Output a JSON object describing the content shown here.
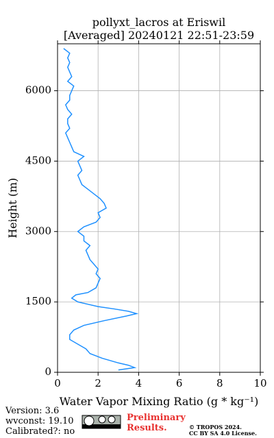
{
  "chart_data": {
    "type": "line",
    "title": "pollyxt_lacros at Eriswil",
    "subtitle": "[Averaged] 20240121 22:51-23:59",
    "x_label": "Water Vapor Mixing Ratio (g * kg⁻¹)",
    "y_label": "Height (m)",
    "color": "#1e90ff",
    "grid": true,
    "xlim": [
      0,
      10
    ],
    "xticks": [
      0,
      2,
      4,
      6,
      8,
      10
    ],
    "ylim": [
      0,
      7000
    ],
    "yticks": [
      0,
      1500,
      3000,
      4500,
      6000
    ],
    "heights": [
      50,
      100,
      150,
      200,
      300,
      400,
      500,
      600,
      700,
      800,
      900,
      1000,
      1100,
      1200,
      1250,
      1300,
      1350,
      1400,
      1500,
      1580,
      1650,
      1700,
      1800,
      1900,
      2000,
      2100,
      2200,
      2300,
      2400,
      2500,
      2600,
      2700,
      2800,
      2900,
      3000,
      3100,
      3200,
      3300,
      3400,
      3500,
      3600,
      3700,
      3800,
      3900,
      4000,
      4100,
      4200,
      4300,
      4400,
      4500,
      4600,
      4700,
      4800,
      4900,
      5000,
      5100,
      5200,
      5300,
      5400,
      5500,
      5600,
      5700,
      5800,
      5900,
      6000,
      6100,
      6200,
      6300,
      6400,
      6500,
      6600,
      6700,
      6800,
      6900
    ],
    "values": [
      3.0,
      3.8,
      3.5,
      3.0,
      2.2,
      1.6,
      1.4,
      1.0,
      0.6,
      0.6,
      0.8,
      1.3,
      2.3,
      3.4,
      3.9,
      3.5,
      2.8,
      2.0,
      1.0,
      0.7,
      0.9,
      1.5,
      1.9,
      2.0,
      2.1,
      1.9,
      2.0,
      1.8,
      1.6,
      1.5,
      1.4,
      1.6,
      1.3,
      1.3,
      1.0,
      1.3,
      1.9,
      2.1,
      2.0,
      2.4,
      2.3,
      2.1,
      1.8,
      1.5,
      1.2,
      1.1,
      1.0,
      1.2,
      1.1,
      1.0,
      1.3,
      0.8,
      0.7,
      0.6,
      0.5,
      0.4,
      0.6,
      0.5,
      0.5,
      0.7,
      0.5,
      0.4,
      0.6,
      0.6,
      0.7,
      0.8,
      0.5,
      0.7,
      0.6,
      0.5,
      0.6,
      0.5,
      0.6,
      0.3
    ]
  },
  "footer": {
    "version": "Version: 3.6",
    "wvconst": "wvconst:  19.10",
    "calibrated": "Calibrated?: no",
    "preliminary": [
      "Preliminary",
      "Results."
    ],
    "copyright": [
      "© TROPOS 2024.",
      "CC BY SA 4.0 License."
    ]
  }
}
